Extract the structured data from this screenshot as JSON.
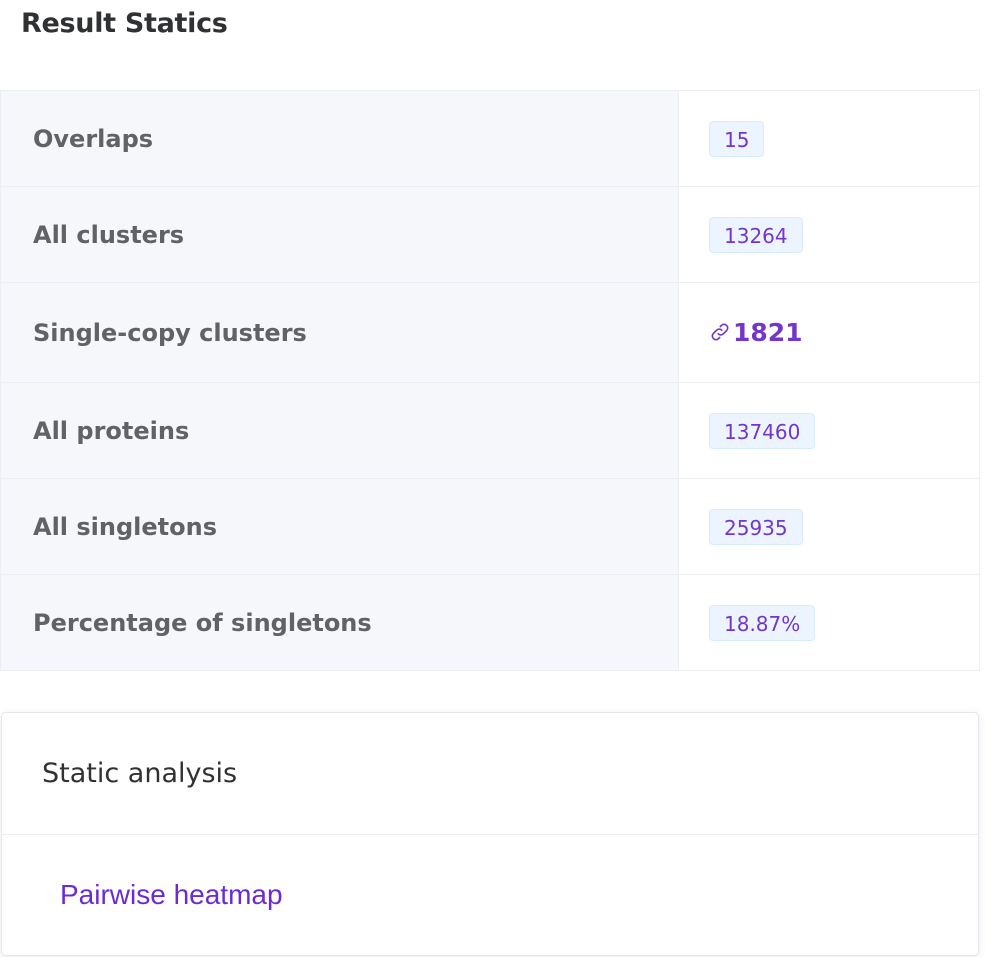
{
  "title": "Result Statics",
  "stats": [
    {
      "label": "Overlaps",
      "value": "15",
      "type": "tag"
    },
    {
      "label": "All clusters",
      "value": "13264",
      "type": "tag"
    },
    {
      "label": "Single-copy clusters",
      "value": "1821",
      "type": "link",
      "icon": "link-icon"
    },
    {
      "label": "All proteins",
      "value": "137460",
      "type": "tag"
    },
    {
      "label": "All singletons",
      "value": "25935",
      "type": "tag"
    },
    {
      "label": "Percentage of singletons",
      "value": "18.87%",
      "type": "tag"
    }
  ],
  "analysis": {
    "header": "Static analysis",
    "link_label": "Pairwise heatmap"
  },
  "colors": {
    "accent": "#7436c9",
    "tag_bg": "#ecf5ff",
    "label_bg": "#f5f7fa"
  }
}
